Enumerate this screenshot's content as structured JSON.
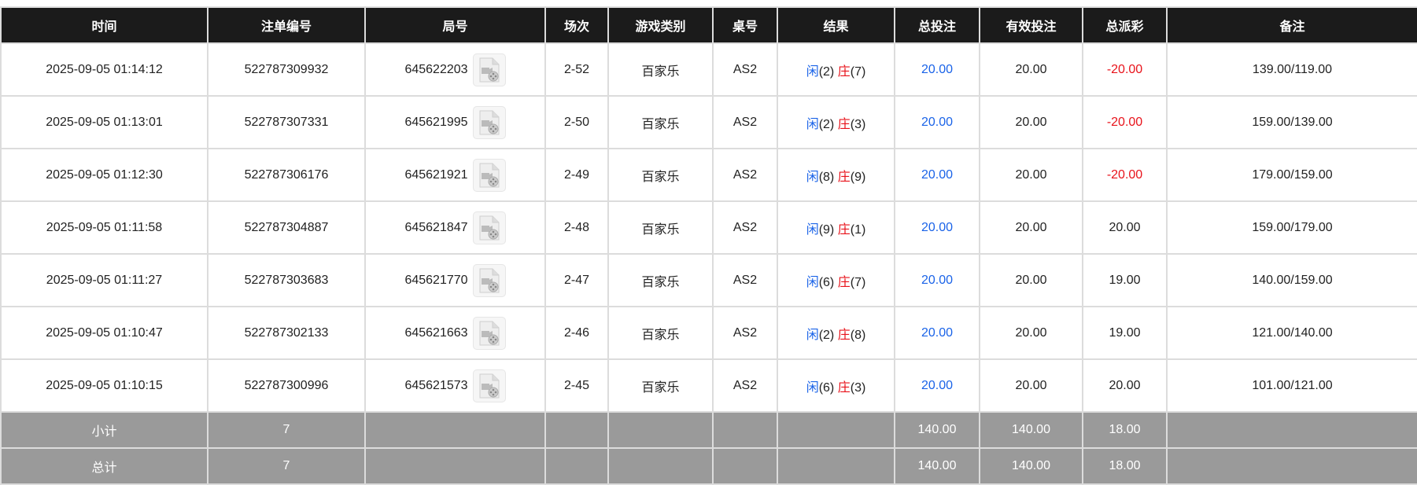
{
  "headers": [
    "时间",
    "注单编号",
    "局号",
    "场次",
    "游戏类别",
    "桌号",
    "结果",
    "总投注",
    "有效投注",
    "总派彩",
    "备注"
  ],
  "rows": [
    {
      "time": "2025-09-05 01:14:12",
      "bet_id": "522787309932",
      "round": "645622203",
      "shoe": "2-52",
      "game": "百家乐",
      "table": "AS2",
      "player_label": "闲",
      "player": "(2)",
      "banker_label": "庄",
      "banker": "(7)",
      "total_bet": "20.00",
      "valid_bet": "20.00",
      "payout": "-20.00",
      "payout_negative": true,
      "note": "139.00/119.00"
    },
    {
      "time": "2025-09-05 01:13:01",
      "bet_id": "522787307331",
      "round": "645621995",
      "shoe": "2-50",
      "game": "百家乐",
      "table": "AS2",
      "player_label": "闲",
      "player": "(2)",
      "banker_label": "庄",
      "banker": "(3)",
      "total_bet": "20.00",
      "valid_bet": "20.00",
      "payout": "-20.00",
      "payout_negative": true,
      "note": "159.00/139.00"
    },
    {
      "time": "2025-09-05 01:12:30",
      "bet_id": "522787306176",
      "round": "645621921",
      "shoe": "2-49",
      "game": "百家乐",
      "table": "AS2",
      "player_label": "闲",
      "player": "(8)",
      "banker_label": "庄",
      "banker": "(9)",
      "total_bet": "20.00",
      "valid_bet": "20.00",
      "payout": "-20.00",
      "payout_negative": true,
      "note": "179.00/159.00"
    },
    {
      "time": "2025-09-05 01:11:58",
      "bet_id": "522787304887",
      "round": "645621847",
      "shoe": "2-48",
      "game": "百家乐",
      "table": "AS2",
      "player_label": "闲",
      "player": "(9)",
      "banker_label": "庄",
      "banker": "(1)",
      "total_bet": "20.00",
      "valid_bet": "20.00",
      "payout": "20.00",
      "payout_negative": false,
      "note": "159.00/179.00"
    },
    {
      "time": "2025-09-05 01:11:27",
      "bet_id": "522787303683",
      "round": "645621770",
      "shoe": "2-47",
      "game": "百家乐",
      "table": "AS2",
      "player_label": "闲",
      "player": "(6)",
      "banker_label": "庄",
      "banker": "(7)",
      "total_bet": "20.00",
      "valid_bet": "20.00",
      "payout": "19.00",
      "payout_negative": false,
      "note": "140.00/159.00"
    },
    {
      "time": "2025-09-05 01:10:47",
      "bet_id": "522787302133",
      "round": "645621663",
      "shoe": "2-46",
      "game": "百家乐",
      "table": "AS2",
      "player_label": "闲",
      "player": "(2)",
      "banker_label": "庄",
      "banker": "(8)",
      "total_bet": "20.00",
      "valid_bet": "20.00",
      "payout": "19.00",
      "payout_negative": false,
      "note": "121.00/140.00"
    },
    {
      "time": "2025-09-05 01:10:15",
      "bet_id": "522787300996",
      "round": "645621573",
      "shoe": "2-45",
      "game": "百家乐",
      "table": "AS2",
      "player_label": "闲",
      "player": "(6)",
      "banker_label": "庄",
      "banker": "(3)",
      "total_bet": "20.00",
      "valid_bet": "20.00",
      "payout": "20.00",
      "payout_negative": false,
      "note": "101.00/121.00"
    }
  ],
  "subtotal": {
    "label": "小计",
    "count": "7",
    "total_bet": "140.00",
    "valid_bet": "140.00",
    "payout": "18.00"
  },
  "total": {
    "label": "总计",
    "count": "7",
    "total_bet": "140.00",
    "valid_bet": "140.00",
    "payout": "18.00"
  },
  "icons": {
    "replay": "video-file-icon"
  },
  "colors": {
    "header_bg": "#1b1b1b",
    "summary_bg": "#9a9a9a",
    "player": "#1a63e8",
    "banker": "#e8121a",
    "negative": "#e8121a",
    "total_bet": "#1a63e8"
  }
}
